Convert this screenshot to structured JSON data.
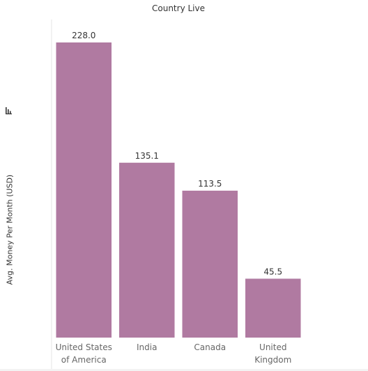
{
  "chart_data": {
    "type": "bar",
    "title": "Country Live",
    "xlabel": "",
    "ylabel": "Avg. Money Per Month (USD)",
    "categories": [
      [
        "United States",
        "of America"
      ],
      [
        "India"
      ],
      [
        "Canada"
      ],
      [
        "United",
        "Kingdom"
      ]
    ],
    "values": [
      228.0,
      135.1,
      113.5,
      45.5
    ],
    "value_labels": [
      "228.0",
      "135.1",
      "113.5",
      "45.5"
    ],
    "ylim": [
      0,
      228.0
    ],
    "grid": false,
    "bar_color": "#b07aa1",
    "axis_line_color": "#e6e6e6"
  },
  "icons": {
    "sort": "sort-descending-icon"
  }
}
